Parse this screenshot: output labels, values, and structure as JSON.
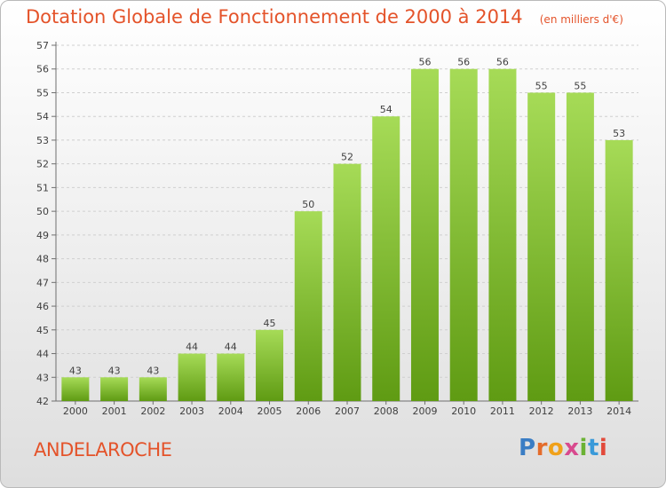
{
  "header": {
    "title": "Dotation Globale de Fonctionnement de 2000 à 2014",
    "subtitle": "(en milliers d'€)"
  },
  "footer": {
    "commune": "ANDELAROCHE",
    "logo_letters": [
      "P",
      "r",
      "o",
      "x",
      "i",
      "t",
      "i"
    ],
    "logo_colors": [
      "#3a7dc4",
      "#e46c2b",
      "#f0a11a",
      "#d84a8e",
      "#6bb234",
      "#3a9ad9",
      "#e24a3b"
    ]
  },
  "colors": {
    "title": "#e4532a",
    "bar_top": "#a6db57",
    "bar_bottom": "#5f9b13",
    "grid": "#cfcfcf",
    "axis": "#6f6f6f",
    "text": "#404040"
  },
  "chart_data": {
    "type": "bar",
    "categories": [
      "2000",
      "2001",
      "2002",
      "2003",
      "2004",
      "2005",
      "2006",
      "2007",
      "2008",
      "2009",
      "2010",
      "2011",
      "2012",
      "2013",
      "2014"
    ],
    "values": [
      43,
      43,
      43,
      44,
      44,
      45,
      50,
      52,
      54,
      56,
      56,
      56,
      55,
      55,
      53
    ],
    "ylim": [
      42,
      57
    ],
    "yticks": [
      42,
      43,
      44,
      45,
      46,
      47,
      48,
      49,
      50,
      51,
      52,
      53,
      54,
      55,
      56,
      57
    ],
    "grid": "horizontal dashed",
    "data_labels": true
  }
}
